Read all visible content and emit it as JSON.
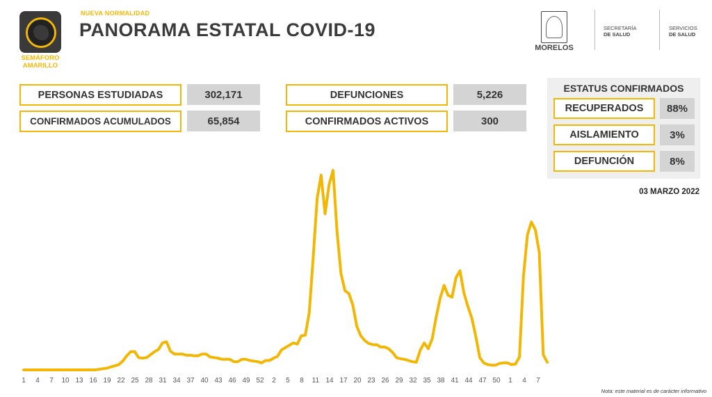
{
  "header": {
    "subtitle": "NUEVA NORMALIDAD",
    "title": "PANORAMA ESTATAL COVID-19",
    "semaforo_line1": "SEMÁFORO",
    "semaforo_line2": "AMARILLO",
    "logo_morelos": "MORELOS",
    "secretaria_line1": "SECRETARÍA",
    "secretaria_line2": "DE SALUD",
    "servicios_line1": "SERVICIOS",
    "servicios_line2": "DE SALUD"
  },
  "stats": {
    "personas_label": "PERSONAS ESTUDIADAS",
    "personas_value": "302,171",
    "confirmados_label": "CONFIRMADOS ACUMULADOS",
    "confirmados_value": "65,854",
    "defunciones_label": "DEFUNCIONES",
    "defunciones_value": "5,226",
    "activos_label": "CONFIRMADOS ACTIVOS",
    "activos_value": "300"
  },
  "status": {
    "title": "ESTATUS CONFIRMADOS",
    "items": [
      {
        "label": "RECUPERADOS",
        "value": "88%"
      },
      {
        "label": "AISLAMIENTO",
        "value": "3%"
      },
      {
        "label": "DEFUNCIÓN",
        "value": "8%"
      }
    ]
  },
  "date": "03 MARZO 2022",
  "note": "Nota: este material es de carácter informativo",
  "colors": {
    "accent": "#f2b705",
    "dark": "#3a3a3a",
    "value_bg": "#d4d4d4"
  },
  "chart_data": {
    "type": "line",
    "title": "",
    "xlabel": "",
    "ylabel": "",
    "grid": false,
    "tick_labels": [
      "1",
      "4",
      "7",
      "10",
      "13",
      "16",
      "19",
      "22",
      "25",
      "28",
      "31",
      "34",
      "37",
      "40",
      "43",
      "46",
      "49",
      "52",
      "2",
      "5",
      "8",
      "11",
      "14",
      "17",
      "20",
      "23",
      "26",
      "29",
      "32",
      "35",
      "38",
      "41",
      "44",
      "47",
      "50",
      "1",
      "4",
      "7"
    ],
    "values": [
      0,
      0,
      0,
      0,
      0,
      0,
      0,
      0,
      0,
      0,
      0,
      0,
      0,
      0,
      0,
      0,
      0,
      0,
      0,
      1,
      2,
      3,
      5,
      7,
      9,
      15,
      24,
      31,
      31,
      21,
      20,
      21,
      26,
      31,
      35,
      46,
      48,
      32,
      27,
      27,
      27,
      25,
      25,
      24,
      24,
      27,
      27,
      22,
      21,
      20,
      18,
      18,
      18,
      14,
      14,
      18,
      18,
      16,
      15,
      14,
      12,
      16,
      16,
      20,
      23,
      34,
      38,
      42,
      46,
      44,
      58,
      59,
      97,
      191,
      292,
      332,
      266,
      316,
      340,
      236,
      164,
      135,
      130,
      110,
      74,
      58,
      50,
      45,
      43,
      43,
      39,
      39,
      36,
      30,
      21,
      19,
      18,
      16,
      14,
      13,
      34,
      46,
      36,
      53,
      90,
      122,
      144,
      127,
      124,
      157,
      169,
      131,
      108,
      88,
      57,
      21,
      12,
      9,
      8,
      8,
      11,
      12,
      12,
      9,
      10,
      22,
      159,
      230,
      252,
      239,
      200,
      26,
      13
    ],
    "ylim": [
      0,
      340
    ]
  }
}
